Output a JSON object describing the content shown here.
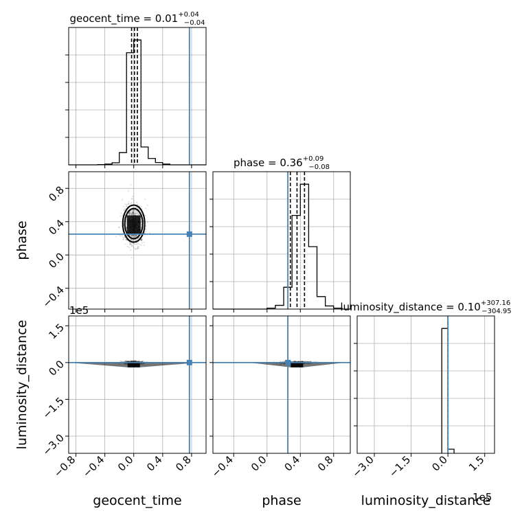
{
  "chart_data": {
    "type": "corner",
    "parameters": [
      "geocent_time",
      "phase",
      "luminosity_distance"
    ],
    "axis_labels": {
      "x": [
        "geocent_time",
        "phase",
        "luminosity_distance"
      ],
      "y": [
        "phase",
        "luminosity_distance"
      ]
    },
    "offset_labels": [
      "1e5",
      "1e5"
    ],
    "colors": {
      "truth": "#4682b4",
      "hist": "#000000",
      "grid": "#b0b0b0",
      "scatter": "#000000"
    },
    "truths": {
      "geocent_time": 0.77,
      "phase": 0.25,
      "luminosity_distance": 0.0
    },
    "diag": [
      {
        "parameter": "geocent_time",
        "title_base": "geocent_time = 0.01",
        "title_sup": "+0.04",
        "title_sub": "−0.04",
        "quantiles": [
          -0.03,
          0.01,
          0.05
        ],
        "xlim": [
          -0.9,
          1.0
        ],
        "bin_edges": [
          -0.9,
          -0.8,
          -0.7,
          -0.6,
          -0.5,
          -0.4,
          -0.3,
          -0.2,
          -0.1,
          0.0,
          0.1,
          0.2,
          0.3,
          0.4,
          0.5,
          0.6,
          0.7,
          0.8,
          0.9,
          1.0
        ],
        "counts": [
          0,
          0,
          0,
          0,
          1,
          3,
          8,
          48,
          440,
          490,
          70,
          25,
          9,
          3,
          0,
          0,
          0,
          0,
          0
        ],
        "xticks": [],
        "tick_labels": []
      },
      {
        "parameter": "phase",
        "title_base": "phase = 0.36",
        "title_sup": "+0.09",
        "title_sub": "−0.08",
        "quantiles": [
          0.28,
          0.36,
          0.45
        ],
        "xlim": [
          -0.65,
          1.0
        ],
        "bin_edges": [
          -0.65,
          -0.5,
          -0.4,
          -0.3,
          -0.2,
          -0.1,
          0.0,
          0.1,
          0.2,
          0.3,
          0.4,
          0.5,
          0.6,
          0.7,
          0.8,
          0.9,
          1.0
        ],
        "counts": [
          0,
          0,
          0,
          0,
          0,
          0,
          3,
          12,
          70,
          300,
          400,
          200,
          40,
          10,
          3,
          0
        ],
        "xticks": [],
        "tick_labels": []
      },
      {
        "parameter": "luminosity_distance",
        "title_base": "luminosity_distance = 0.10",
        "title_sup": "+307.16",
        "title_sub": "−304.95",
        "quantiles": [
          -304.95,
          0.1,
          307.16
        ],
        "xlim": [
          -3.7,
          1.9
        ],
        "bin_edges": [
          -0.25,
          0.0,
          0.25
        ],
        "counts": [
          910,
          30
        ],
        "xticks": [
          -3.0,
          -1.5,
          0.0,
          1.5
        ],
        "tick_labels": [
          "−3.0",
          "−1.5",
          "0.0",
          "1.5"
        ]
      }
    ],
    "scatter": [
      {
        "x_param": "geocent_time",
        "y_param": "phase",
        "xlim": [
          -0.9,
          1.0
        ],
        "ylim": [
          -0.65,
          1.0
        ],
        "xticks": [
          -0.8,
          -0.4,
          0.0,
          0.4,
          0.8
        ],
        "xtick_labels": [
          "−0.8",
          "−0.4",
          "0.0",
          "0.4",
          "0.8"
        ],
        "yticks": [
          -0.4,
          0.0,
          0.4,
          0.8
        ],
        "ytick_labels": [
          "−0.4",
          "0.0",
          "0.4",
          "0.8"
        ],
        "center": [
          0.0,
          0.36
        ],
        "spread": [
          0.07,
          0.12
        ],
        "truth": [
          0.77,
          0.25
        ]
      },
      {
        "x_param": "geocent_time",
        "y_param": "luminosity_distance",
        "xlim": [
          -0.9,
          1.0
        ],
        "ylim": [
          -3.7,
          1.9
        ],
        "xticks": [
          -0.8,
          -0.4,
          0.0,
          0.4,
          0.8
        ],
        "xtick_labels": [
          "−0.8",
          "−0.4",
          "0.0",
          "0.4",
          "0.8"
        ],
        "yticks": [
          -3.0,
          -1.5,
          0.0,
          1.5
        ],
        "ytick_labels": [
          "−3.0",
          "−1.5",
          "0.0",
          "1.5"
        ],
        "center": [
          0.0,
          0.0
        ],
        "spread": [
          0.06,
          0.05
        ],
        "truth": [
          0.77,
          0.0
        ]
      },
      {
        "x_param": "phase",
        "y_param": "luminosity_distance",
        "xlim": [
          -0.65,
          1.0
        ],
        "ylim": [
          -3.7,
          1.9
        ],
        "xticks": [
          -0.4,
          0.0,
          0.4,
          0.8
        ],
        "xtick_labels": [
          "−0.4",
          "0.0",
          "0.4",
          "0.8"
        ],
        "yticks": [
          -3.0,
          -1.5,
          0.0,
          1.5
        ],
        "ytick_labels": [],
        "center": [
          0.36,
          0.0
        ],
        "spread": [
          0.09,
          0.04
        ],
        "truth": [
          0.25,
          0.0
        ]
      }
    ]
  }
}
